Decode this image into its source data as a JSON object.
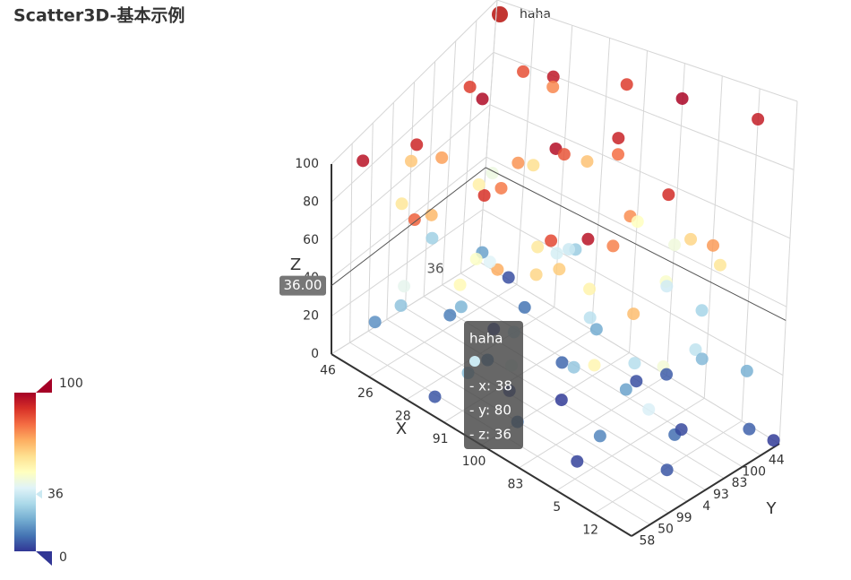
{
  "chart_data": {
    "type": "scatter3d",
    "title": "Scatter3D-基本示例",
    "series_name": "haha",
    "legend_color": "#c23531",
    "x_axis_name": "X",
    "y_axis_name": "Y",
    "z_axis_name": "Z",
    "x_categories": [
      "46",
      "26",
      "28",
      "91",
      "100",
      "83",
      "5",
      "12"
    ],
    "y_categories": [
      "58",
      "50",
      "99",
      "4",
      "93",
      "83",
      "100",
      "44"
    ],
    "xlim": [
      0,
      100
    ],
    "ylim": [
      0,
      100
    ],
    "zlim": [
      0,
      100
    ],
    "zticks": [
      0,
      20,
      40,
      60,
      80,
      100
    ],
    "grid": true,
    "visual_map": {
      "min": 0,
      "max": 100,
      "indicator": 36,
      "colors": [
        "#313695",
        "#4575b4",
        "#74add1",
        "#abd9e9",
        "#e0f3f8",
        "#ffffbf",
        "#fee090",
        "#fdae61",
        "#f46d43",
        "#d73027",
        "#a50026"
      ]
    },
    "axis_pointer": {
      "z_label": "36.00",
      "plane_label": "36"
    },
    "tooltip": {
      "name": "haha",
      "lines": [
        "- x: 38",
        "- y: 80",
        "- z: 36"
      ],
      "point": [
        38,
        80,
        36
      ]
    },
    "points": [
      [
        5,
        10,
        96
      ],
      [
        12,
        30,
        92
      ],
      [
        20,
        55,
        98
      ],
      [
        8,
        70,
        88
      ],
      [
        30,
        80,
        95
      ],
      [
        40,
        20,
        90
      ],
      [
        50,
        45,
        97
      ],
      [
        60,
        65,
        93
      ],
      [
        70,
        85,
        99
      ],
      [
        15,
        90,
        85
      ],
      [
        25,
        5,
        82
      ],
      [
        35,
        40,
        78
      ],
      [
        45,
        60,
        84
      ],
      [
        55,
        75,
        80
      ],
      [
        65,
        15,
        86
      ],
      [
        75,
        35,
        77
      ],
      [
        85,
        50,
        91
      ],
      [
        90,
        95,
        94
      ],
      [
        10,
        50,
        72
      ],
      [
        20,
        25,
        68
      ],
      [
        30,
        60,
        74
      ],
      [
        40,
        85,
        66
      ],
      [
        50,
        10,
        70
      ],
      [
        60,
        30,
        64
      ],
      [
        70,
        55,
        75
      ],
      [
        80,
        75,
        62
      ],
      [
        90,
        20,
        67
      ],
      [
        95,
        60,
        73
      ],
      [
        5,
        35,
        58
      ],
      [
        15,
        65,
        55
      ],
      [
        25,
        80,
        60
      ],
      [
        35,
        15,
        52
      ],
      [
        45,
        45,
        57
      ],
      [
        55,
        90,
        50
      ],
      [
        65,
        40,
        54
      ],
      [
        75,
        70,
        48
      ],
      [
        85,
        5,
        53
      ],
      [
        95,
        30,
        46
      ],
      [
        8,
        88,
        44
      ],
      [
        18,
        12,
        42
      ],
      [
        28,
        48,
        40
      ],
      [
        38,
        72,
        38
      ],
      [
        48,
        25,
        35
      ],
      [
        58,
        55,
        33
      ],
      [
        68,
        85,
        37
      ],
      [
        78,
        45,
        32
      ],
      [
        88,
        65,
        34
      ],
      [
        98,
        15,
        39
      ],
      [
        3,
        60,
        28
      ],
      [
        13,
        20,
        25
      ],
      [
        23,
        40,
        22
      ],
      [
        33,
        95,
        27
      ],
      [
        43,
        5,
        24
      ],
      [
        53,
        70,
        20
      ],
      [
        63,
        35,
        26
      ],
      [
        73,
        50,
        18
      ],
      [
        83,
        80,
        23
      ],
      [
        93,
        90,
        21
      ],
      [
        7,
        15,
        15
      ],
      [
        17,
        45,
        12
      ],
      [
        27,
        75,
        10
      ],
      [
        37,
        30,
        14
      ],
      [
        47,
        60,
        8
      ],
      [
        57,
        10,
        11
      ],
      [
        67,
        90,
        6
      ],
      [
        77,
        25,
        13
      ],
      [
        87,
        55,
        9
      ],
      [
        97,
        85,
        7
      ],
      [
        12,
        95,
        4
      ],
      [
        22,
        65,
        2
      ],
      [
        32,
        5,
        5
      ],
      [
        42,
        35,
        3
      ],
      [
        52,
        50,
        1
      ],
      [
        62,
        80,
        4
      ],
      [
        72,
        20,
        2
      ],
      [
        82,
        70,
        3
      ],
      [
        92,
        40,
        5
      ],
      [
        99,
        98,
        1
      ],
      [
        45,
        98,
        88
      ],
      [
        65,
        95,
        45
      ],
      [
        38,
        80,
        36
      ],
      [
        80,
        10,
        96
      ],
      [
        10,
        80,
        18
      ],
      [
        55,
        25,
        62
      ],
      [
        30,
        35,
        49
      ],
      [
        75,
        95,
        29
      ],
      [
        90,
        75,
        58
      ],
      [
        20,
        100,
        76
      ],
      [
        60,
        0,
        41
      ],
      [
        0,
        50,
        65
      ]
    ]
  }
}
